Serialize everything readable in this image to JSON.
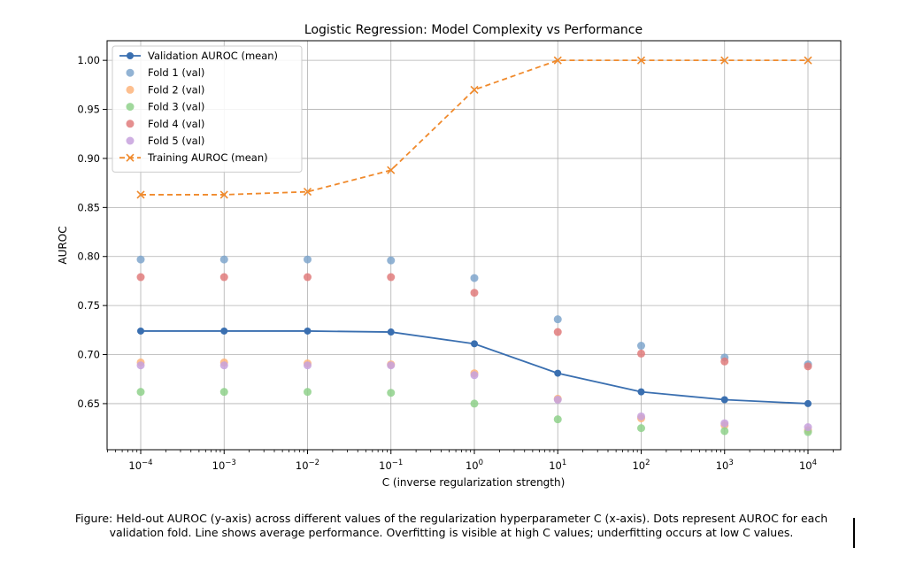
{
  "chart_data": {
    "type": "line",
    "title": "Logistic Regression: Model Complexity vs Performance",
    "xlabel": "C (inverse regularization strength)",
    "ylabel": "AUROC",
    "xscale": "log",
    "x": [
      0.0001,
      0.001,
      0.01,
      0.1,
      1,
      10,
      100,
      1000,
      10000
    ],
    "x_tick_labels": [
      {
        "base": "10",
        "exp": "−4"
      },
      {
        "base": "10",
        "exp": "−3"
      },
      {
        "base": "10",
        "exp": "−2"
      },
      {
        "base": "10",
        "exp": "−1"
      },
      {
        "base": "10",
        "exp": "0"
      },
      {
        "base": "10",
        "exp": "1"
      },
      {
        "base": "10",
        "exp": "2"
      },
      {
        "base": "10",
        "exp": "3"
      },
      {
        "base": "10",
        "exp": "4"
      }
    ],
    "y_ticks": [
      0.65,
      0.7,
      0.75,
      0.8,
      0.85,
      0.9,
      0.95,
      1.0
    ],
    "y_tick_labels": [
      "0.65",
      "0.70",
      "0.75",
      "0.80",
      "0.85",
      "0.90",
      "0.95",
      "1.00"
    ],
    "ylim": [
      0.603,
      1.02
    ],
    "grid": true,
    "legend_position": "top-left",
    "series": [
      {
        "name": "Validation AUROC (mean)",
        "style": "line-dot",
        "color": "#3a6fb0",
        "values": [
          0.724,
          0.724,
          0.724,
          0.723,
          0.711,
          0.681,
          0.662,
          0.654,
          0.65
        ]
      },
      {
        "name": "Fold 1 (val)",
        "style": "scatter",
        "color": "#7fa6cc",
        "values": [
          0.797,
          0.797,
          0.797,
          0.796,
          0.778,
          0.736,
          0.709,
          0.697,
          0.69
        ]
      },
      {
        "name": "Fold 2 (val)",
        "style": "scatter",
        "color": "#fdb47b",
        "values": [
          0.692,
          0.692,
          0.691,
          0.69,
          0.681,
          0.655,
          0.635,
          0.628,
          0.623
        ]
      },
      {
        "name": "Fold 3 (val)",
        "style": "scatter",
        "color": "#8fd18b",
        "values": [
          0.662,
          0.662,
          0.662,
          0.661,
          0.65,
          0.634,
          0.625,
          0.622,
          0.621
        ]
      },
      {
        "name": "Fold 4 (val)",
        "style": "scatter",
        "color": "#e07b7b",
        "values": [
          0.779,
          0.779,
          0.779,
          0.779,
          0.763,
          0.723,
          0.701,
          0.693,
          0.688
        ]
      },
      {
        "name": "Fold 5 (val)",
        "style": "scatter",
        "color": "#c7a1dd",
        "values": [
          0.689,
          0.689,
          0.689,
          0.689,
          0.679,
          0.654,
          0.637,
          0.63,
          0.626
        ]
      },
      {
        "name": "Training AUROC (mean)",
        "style": "dashed-x",
        "color": "#f08a2c",
        "values": [
          0.863,
          0.863,
          0.866,
          0.888,
          0.97,
          1.0,
          1.0,
          1.0,
          1.0
        ]
      }
    ]
  },
  "caption": {
    "line1": "Figure: Held-out AUROC (y-axis) across different values of the regularization hyperparameter C (x-axis). Dots represent AUROC for each",
    "line2": "validation fold. Line shows average performance. Overfitting is visible at high C values; underfitting occurs at low C values."
  }
}
